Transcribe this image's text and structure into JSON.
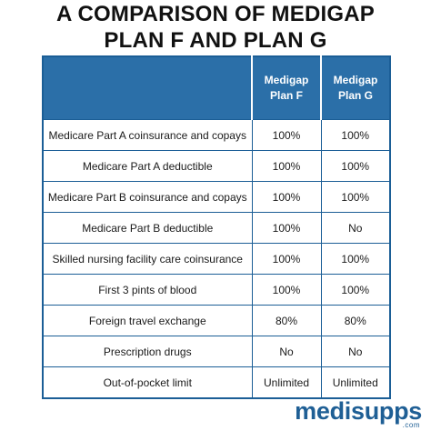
{
  "title": {
    "line1": "A COMPARISON OF MEDIGAP",
    "line2": "PLAN F AND PLAN G"
  },
  "table": {
    "headers": {
      "feature": "",
      "plan_f": [
        "Medigap",
        "Plan F"
      ],
      "plan_g": [
        "Medigap",
        "Plan G"
      ]
    },
    "rows": [
      {
        "feature": "Medicare Part A coinsurance and copays",
        "plan_f": "100%",
        "plan_g": "100%"
      },
      {
        "feature": "Medicare Part A deductible",
        "plan_f": "100%",
        "plan_g": "100%"
      },
      {
        "feature": "Medicare Part B coinsurance and copays",
        "plan_f": "100%",
        "plan_g": "100%"
      },
      {
        "feature": "Medicare Part B deductible",
        "plan_f": "100%",
        "plan_g": "No"
      },
      {
        "feature": "Skilled nursing facility care coinsurance",
        "plan_f": "100%",
        "plan_g": "100%"
      },
      {
        "feature": "First 3 pints of blood",
        "plan_f": "100%",
        "plan_g": "100%"
      },
      {
        "feature": "Foreign travel exchange",
        "plan_f": "80%",
        "plan_g": "80%"
      },
      {
        "feature": "Prescription drugs",
        "plan_f": "No",
        "plan_g": "No"
      },
      {
        "feature": "Out-of-pocket limit",
        "plan_f": "Unlimited",
        "plan_g": "Unlimited"
      }
    ]
  },
  "logo": {
    "word": "medisupps",
    "tld": ".com"
  },
  "colors": {
    "header_bg": "#2b6fa8",
    "border": "#1b5e96",
    "brand": "#1f5f95"
  }
}
